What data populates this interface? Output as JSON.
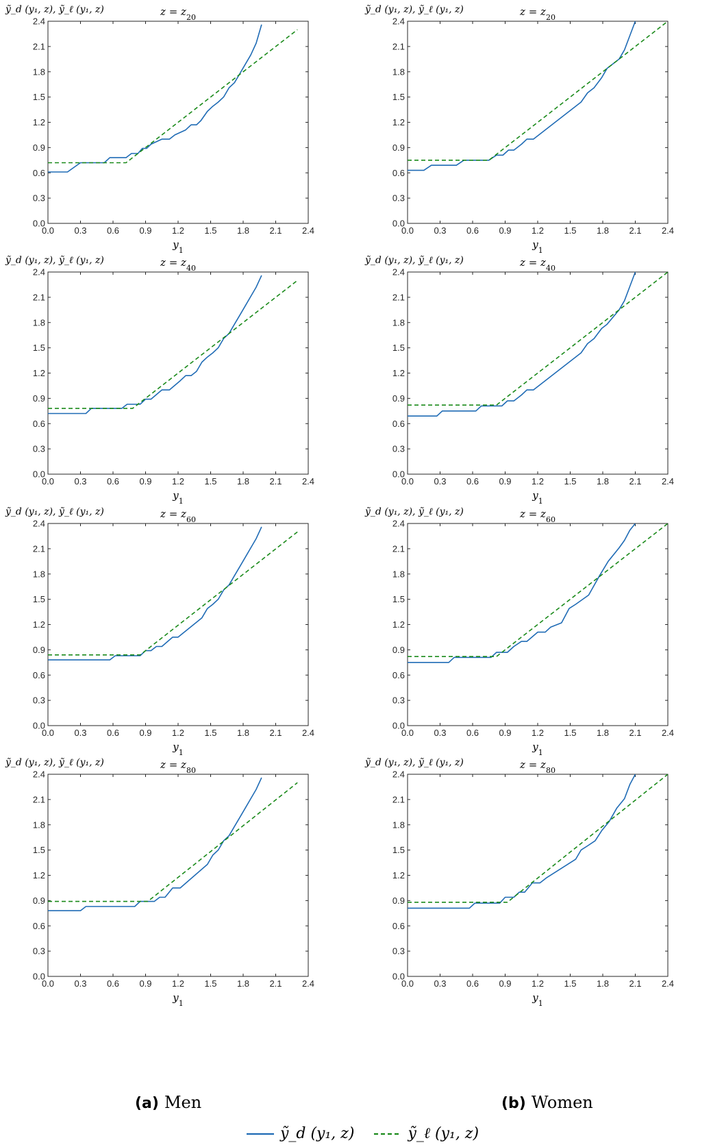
{
  "figure": {
    "colors": {
      "model": "#1f6bb5",
      "linear": "#1a8a1a",
      "axis": "#262626"
    },
    "subcaptions": [
      {
        "label": "(a)",
        "text": "Men"
      },
      {
        "label": "(b)",
        "text": "Women"
      }
    ],
    "legend": [
      {
        "name": "ỹ_d (y₁, z)",
        "style": "solid"
      },
      {
        "name": "ỹ_ℓ (y₁, z)",
        "style": "dashed"
      }
    ]
  },
  "chart_data": [
    {
      "type": "line",
      "title": "z = z20",
      "xlabel": "y1",
      "ylabel": "ỹ_d (y₁, z), ỹ_ℓ (y₁, z)",
      "xlim": [
        0,
        2.4
      ],
      "ylim": [
        0,
        2.4
      ],
      "xticks": [
        "0.0",
        "0.3",
        "0.6",
        "0.9",
        "1.2",
        "1.5",
        "1.8",
        "2.1",
        "2.4"
      ],
      "yticks": [
        "0.0",
        "0.3",
        "0.6",
        "0.9",
        "1.2",
        "1.5",
        "1.8",
        "2.1",
        "2.4"
      ],
      "series": [
        {
          "x": [
            0,
            0.18,
            0.3,
            0.52,
            0.57,
            0.72,
            0.77,
            0.83,
            0.87,
            0.91,
            0.95,
            1.05,
            1.12,
            1.17,
            1.27,
            1.32,
            1.37,
            1.41,
            1.47,
            1.52,
            1.57,
            1.62,
            1.67,
            1.72,
            1.77,
            1.82,
            1.87,
            1.92,
            1.97
          ],
          "y": [
            0.61,
            0.61,
            0.72,
            0.72,
            0.78,
            0.78,
            0.83,
            0.83,
            0.89,
            0.89,
            0.94,
            1.0,
            1.0,
            1.05,
            1.11,
            1.17,
            1.17,
            1.22,
            1.33,
            1.39,
            1.44,
            1.5,
            1.61,
            1.67,
            1.78,
            1.89,
            2.0,
            2.14,
            2.36
          ]
        },
        {
          "x": [
            0,
            0.72,
            2.3
          ],
          "y": [
            0.72,
            0.72,
            2.3
          ]
        }
      ]
    },
    {
      "type": "line",
      "title": "z = z20",
      "xlabel": "y1",
      "ylabel": "ỹ_d (y₁, z), ỹ_ℓ (y₁, z)",
      "xlim": [
        0,
        2.4
      ],
      "ylim": [
        0,
        2.4
      ],
      "xticks": [
        "0.0",
        "0.3",
        "0.6",
        "0.9",
        "1.2",
        "1.5",
        "1.8",
        "2.1",
        "2.4"
      ],
      "yticks": [
        "0.0",
        "0.3",
        "0.6",
        "0.9",
        "1.2",
        "1.5",
        "1.8",
        "2.1",
        "2.4"
      ],
      "series": [
        {
          "x": [
            0,
            0.15,
            0.22,
            0.45,
            0.52,
            0.75,
            0.82,
            0.88,
            0.93,
            0.98,
            1.05,
            1.1,
            1.16,
            1.6,
            1.66,
            1.72,
            1.79,
            1.84,
            1.95,
            2.0,
            2.05,
            2.1
          ],
          "y": [
            0.63,
            0.63,
            0.69,
            0.69,
            0.75,
            0.75,
            0.81,
            0.81,
            0.87,
            0.87,
            0.94,
            1.0,
            1.0,
            1.44,
            1.55,
            1.61,
            1.73,
            1.84,
            1.95,
            2.06,
            2.23,
            2.4
          ]
        },
        {
          "x": [
            0,
            0.75,
            2.4
          ],
          "y": [
            0.75,
            0.75,
            2.4
          ]
        }
      ]
    },
    {
      "type": "line",
      "title": "z = z40",
      "xlabel": "y1",
      "ylabel": "ỹ_d (y₁, z), ỹ_ℓ (y₁, z)",
      "xlim": [
        0,
        2.4
      ],
      "ylim": [
        0,
        2.4
      ],
      "xticks": [
        "0.0",
        "0.3",
        "0.6",
        "0.9",
        "1.2",
        "1.5",
        "1.8",
        "2.1",
        "2.4"
      ],
      "yticks": [
        "0.0",
        "0.3",
        "0.6",
        "0.9",
        "1.2",
        "1.5",
        "1.8",
        "2.1",
        "2.4"
      ],
      "series": [
        {
          "x": [
            0,
            0.35,
            0.4,
            0.68,
            0.73,
            0.85,
            0.9,
            0.95,
            1.05,
            1.12,
            1.22,
            1.27,
            1.32,
            1.37,
            1.42,
            1.47,
            1.52,
            1.57,
            1.62,
            1.67,
            1.72,
            1.77,
            1.82,
            1.87,
            1.92,
            1.97
          ],
          "y": [
            0.72,
            0.72,
            0.78,
            0.78,
            0.83,
            0.83,
            0.89,
            0.89,
            1.0,
            1.0,
            1.11,
            1.17,
            1.17,
            1.22,
            1.33,
            1.39,
            1.44,
            1.5,
            1.61,
            1.67,
            1.78,
            1.89,
            2.0,
            2.11,
            2.22,
            2.36
          ]
        },
        {
          "x": [
            0,
            0.78,
            2.3
          ],
          "y": [
            0.78,
            0.78,
            2.3
          ]
        }
      ]
    },
    {
      "type": "line",
      "title": "z = z40",
      "xlabel": "y1",
      "ylabel": "ỹ_d (y₁, z), ỹ_ℓ (y₁, z)",
      "xlim": [
        0,
        2.4
      ],
      "ylim": [
        0,
        2.4
      ],
      "xticks": [
        "0.0",
        "0.3",
        "0.6",
        "0.9",
        "1.2",
        "1.5",
        "1.8",
        "2.1",
        "2.4"
      ],
      "yticks": [
        "0.0",
        "0.3",
        "0.6",
        "0.9",
        "1.2",
        "1.5",
        "1.8",
        "2.1",
        "2.4"
      ],
      "series": [
        {
          "x": [
            0,
            0.27,
            0.32,
            0.63,
            0.68,
            0.87,
            0.92,
            0.98,
            1.05,
            1.1,
            1.16,
            1.6,
            1.66,
            1.72,
            1.79,
            1.84,
            1.95,
            2.0,
            2.05,
            2.1
          ],
          "y": [
            0.69,
            0.69,
            0.75,
            0.75,
            0.81,
            0.81,
            0.87,
            0.87,
            0.94,
            1.0,
            1.0,
            1.44,
            1.55,
            1.61,
            1.73,
            1.78,
            1.95,
            2.06,
            2.23,
            2.4
          ]
        },
        {
          "x": [
            0,
            0.82,
            2.4
          ],
          "y": [
            0.82,
            0.82,
            2.4
          ]
        }
      ]
    },
    {
      "type": "line",
      "title": "z = z60",
      "xlabel": "y1",
      "ylabel": "ỹ_d (y₁, z), ỹ_ℓ (y₁, z)",
      "xlim": [
        0,
        2.4
      ],
      "ylim": [
        0,
        2.4
      ],
      "xticks": [
        "0.0",
        "0.3",
        "0.6",
        "0.9",
        "1.2",
        "1.5",
        "1.8",
        "2.1",
        "2.4"
      ],
      "yticks": [
        "0.0",
        "0.3",
        "0.6",
        "0.9",
        "1.2",
        "1.5",
        "1.8",
        "2.1",
        "2.4"
      ],
      "series": [
        {
          "x": [
            0,
            0.57,
            0.62,
            0.85,
            0.9,
            0.95,
            1.0,
            1.05,
            1.15,
            1.2,
            1.42,
            1.47,
            1.52,
            1.57,
            1.62,
            1.67,
            1.72,
            1.77,
            1.82,
            1.87,
            1.92,
            1.97
          ],
          "y": [
            0.78,
            0.78,
            0.83,
            0.83,
            0.89,
            0.89,
            0.94,
            0.94,
            1.05,
            1.05,
            1.28,
            1.39,
            1.44,
            1.5,
            1.61,
            1.67,
            1.78,
            1.89,
            2.0,
            2.11,
            2.22,
            2.36
          ]
        },
        {
          "x": [
            0,
            0.85,
            2.3
          ],
          "y": [
            0.84,
            0.84,
            2.3
          ]
        }
      ]
    },
    {
      "type": "line",
      "title": "z = z60",
      "xlabel": "y1",
      "ylabel": "ỹ_d (y₁, z), ỹ_ℓ (y₁, z)",
      "xlim": [
        0,
        2.4
      ],
      "ylim": [
        0,
        2.4
      ],
      "xticks": [
        "0.0",
        "0.3",
        "0.6",
        "0.9",
        "1.2",
        "1.5",
        "1.8",
        "2.1",
        "2.4"
      ],
      "yticks": [
        "0.0",
        "0.3",
        "0.6",
        "0.9",
        "1.2",
        "1.5",
        "1.8",
        "2.1",
        "2.4"
      ],
      "series": [
        {
          "x": [
            0,
            0.38,
            0.43,
            0.77,
            0.82,
            0.92,
            0.98,
            1.05,
            1.1,
            1.2,
            1.27,
            1.32,
            1.42,
            1.49,
            1.55,
            1.67,
            1.77,
            1.85,
            1.95,
            2.0,
            2.05,
            2.1
          ],
          "y": [
            0.75,
            0.75,
            0.81,
            0.81,
            0.87,
            0.87,
            0.94,
            1.0,
            1.0,
            1.11,
            1.11,
            1.17,
            1.22,
            1.39,
            1.44,
            1.55,
            1.78,
            1.95,
            2.11,
            2.2,
            2.32,
            2.4
          ]
        },
        {
          "x": [
            0,
            0.82,
            2.4
          ],
          "y": [
            0.82,
            0.82,
            2.4
          ]
        }
      ]
    },
    {
      "type": "line",
      "title": "z = z80",
      "xlabel": "y1",
      "ylabel": "ỹ_d (y₁, z), ỹ_ℓ (y₁, z)",
      "xlim": [
        0,
        2.4
      ],
      "ylim": [
        0,
        2.4
      ],
      "xticks": [
        "0.0",
        "0.3",
        "0.6",
        "0.9",
        "1.2",
        "1.5",
        "1.8",
        "2.1",
        "2.4"
      ],
      "yticks": [
        "0.0",
        "0.3",
        "0.6",
        "0.9",
        "1.2",
        "1.5",
        "1.8",
        "2.1",
        "2.4"
      ],
      "series": [
        {
          "x": [
            0,
            0.3,
            0.35,
            0.8,
            0.85,
            0.98,
            1.03,
            1.08,
            1.15,
            1.22,
            1.47,
            1.52,
            1.57,
            1.62,
            1.67,
            1.72,
            1.77,
            1.82,
            1.87,
            1.92,
            1.97
          ],
          "y": [
            0.78,
            0.78,
            0.83,
            0.83,
            0.89,
            0.89,
            0.94,
            0.94,
            1.05,
            1.05,
            1.33,
            1.44,
            1.5,
            1.61,
            1.67,
            1.78,
            1.89,
            2.0,
            2.11,
            2.22,
            2.36
          ]
        },
        {
          "x": [
            0,
            0.92,
            2.3
          ],
          "y": [
            0.89,
            0.89,
            2.3
          ]
        }
      ]
    },
    {
      "type": "line",
      "title": "z = z80",
      "xlabel": "y1",
      "ylabel": "ỹ_d (y₁, z), ỹ_ℓ (y₁, z)",
      "xlim": [
        0,
        2.4
      ],
      "ylim": [
        0,
        2.4
      ],
      "xticks": [
        "0.0",
        "0.3",
        "0.6",
        "0.9",
        "1.2",
        "1.5",
        "1.8",
        "2.1",
        "2.4"
      ],
      "yticks": [
        "0.0",
        "0.3",
        "0.6",
        "0.9",
        "1.2",
        "1.5",
        "1.8",
        "2.1",
        "2.4"
      ],
      "series": [
        {
          "x": [
            0,
            0.57,
            0.62,
            0.85,
            0.9,
            0.98,
            1.03,
            1.08,
            1.15,
            1.22,
            1.28,
            1.55,
            1.6,
            1.66,
            1.73,
            1.79,
            1.86,
            1.93,
            2.0,
            2.05,
            2.1
          ],
          "y": [
            0.81,
            0.81,
            0.87,
            0.87,
            0.94,
            0.94,
            1.0,
            1.0,
            1.11,
            1.11,
            1.17,
            1.39,
            1.5,
            1.55,
            1.61,
            1.73,
            1.84,
            2.0,
            2.11,
            2.28,
            2.4
          ]
        },
        {
          "x": [
            0,
            0.92,
            2.4
          ],
          "y": [
            0.88,
            0.88,
            2.4
          ]
        }
      ]
    }
  ]
}
